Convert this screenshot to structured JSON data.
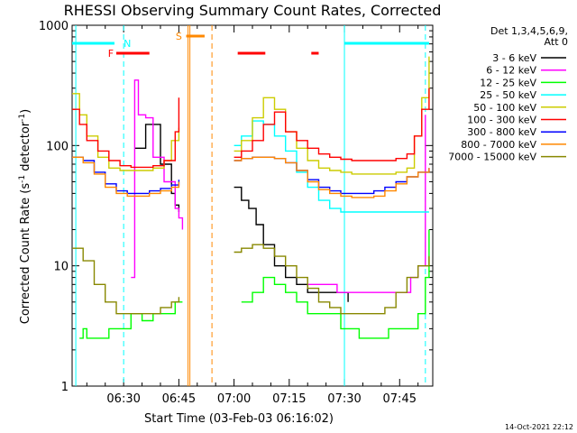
{
  "chart_data": {
    "type": "line",
    "title": "RHESSI Observing Summary Count Rates, Corrected",
    "xlabel": "Start Time (03-Feb-03 06:16:02)",
    "ylabel": "Corrected Count Rate (s",
    "ylabel_sup1": "-1",
    "ylabel_mid": " detector",
    "ylabel_sup2": "-1",
    "ylabel_end": ")",
    "y_scale": "log",
    "ylim": [
      1,
      1000
    ],
    "y_ticks": [
      {
        "value": 1,
        "label": "1"
      },
      {
        "value": 10,
        "label": "10"
      },
      {
        "value": 100,
        "label": "100"
      },
      {
        "value": 1000,
        "label": "1000"
      }
    ],
    "x_unit": "minutes",
    "xlim": [
      376,
      474
    ],
    "x_ticks": [
      {
        "value": 390,
        "label": "06:30"
      },
      {
        "value": 405,
        "label": "06:45"
      },
      {
        "value": 420,
        "label": "07:00"
      },
      {
        "value": 435,
        "label": "07:15"
      },
      {
        "value": 450,
        "label": "07:30"
      },
      {
        "value": 465,
        "label": "07:45"
      }
    ],
    "legend": {
      "header1": "Det 1,3,4,5,6,9,",
      "header2": "Att 0",
      "placement": "right"
    },
    "series": [
      {
        "name": "3 - 6 keV",
        "color": "#000000",
        "x": [
          376,
          383,
          387,
          390,
          393,
          396,
          400,
          403,
          404,
          405,
          406,
          407,
          408,
          409,
          411,
          414,
          418,
          419,
          420,
          422,
          424,
          426,
          428,
          431,
          434,
          437,
          440,
          443,
          446,
          448,
          451
        ],
        "y": [
          null,
          null,
          null,
          null,
          95,
          150,
          70,
          40,
          32,
          28,
          null,
          null,
          null,
          null,
          null,
          null,
          null,
          null,
          45,
          35,
          30,
          22,
          15,
          10,
          8,
          7,
          6,
          6,
          6,
          6,
          5
        ]
      },
      {
        "name": "6 - 12 keV",
        "color": "#ff00ff",
        "x": [
          376,
          380,
          384,
          386,
          387,
          388,
          389,
          390,
          391,
          392,
          393,
          394,
          396,
          398,
          401,
          404,
          405,
          406,
          407,
          408,
          409,
          418,
          419,
          420,
          422,
          424,
          426,
          428,
          431,
          434,
          437,
          440,
          443,
          446,
          448,
          451,
          454,
          456,
          458,
          460,
          462,
          464,
          466,
          468,
          470,
          472
        ],
        "y": [
          null,
          null,
          null,
          null,
          null,
          null,
          null,
          null,
          null,
          8,
          350,
          180,
          170,
          80,
          50,
          30,
          25,
          20,
          null,
          null,
          null,
          null,
          null,
          null,
          null,
          null,
          null,
          null,
          null,
          null,
          null,
          7,
          7,
          7,
          6,
          6,
          6,
          6,
          6,
          6,
          6,
          6,
          6,
          8,
          10,
          180
        ]
      },
      {
        "name": "12 - 25 keV",
        "color": "#00ff00",
        "x": [
          376,
          377,
          378,
          379,
          380,
          383,
          386,
          389,
          392,
          395,
          398,
          401,
          404,
          405,
          406,
          407,
          408,
          409,
          418,
          419,
          420,
          422,
          425,
          428,
          431,
          434,
          437,
          440,
          443,
          446,
          449,
          452,
          454,
          456,
          458,
          460,
          462,
          464,
          466,
          468,
          470,
          472,
          473
        ],
        "y": [
          null,
          null,
          2.5,
          3,
          2.5,
          2.5,
          3,
          3,
          4,
          3.5,
          4,
          4,
          5,
          5,
          5,
          null,
          null,
          null,
          null,
          null,
          null,
          5,
          6,
          8,
          7,
          6,
          5,
          4,
          4,
          4,
          3,
          3,
          2.5,
          2.5,
          2.5,
          2.5,
          3,
          3,
          3,
          3,
          4,
          8,
          20
        ]
      },
      {
        "name": "25 - 50 keV",
        "color": "#00ffff",
        "x": [
          376,
          380,
          384,
          387,
          390,
          393,
          396,
          399,
          402,
          404,
          405,
          406,
          407,
          408,
          409,
          418,
          419,
          420,
          422,
          425,
          428,
          431,
          434,
          437,
          440,
          443,
          446,
          449,
          452,
          455,
          458,
          461,
          464,
          467,
          469,
          471,
          473
        ],
        "y": [
          null,
          null,
          null,
          null,
          null,
          null,
          null,
          null,
          null,
          null,
          null,
          null,
          null,
          null,
          null,
          null,
          null,
          100,
          120,
          160,
          150,
          120,
          90,
          60,
          45,
          35,
          30,
          28,
          28,
          28,
          28,
          28,
          28,
          28,
          28,
          28,
          28
        ]
      },
      {
        "name": "50 - 100 keV",
        "color": "#cccc00",
        "x": [
          376,
          378,
          380,
          383,
          386,
          389,
          392,
          395,
          398,
          401,
          403,
          405,
          406,
          407,
          408,
          409,
          418,
          419,
          420,
          422,
          425,
          428,
          431,
          434,
          437,
          440,
          443,
          446,
          449,
          452,
          455,
          458,
          461,
          464,
          467,
          469,
          471,
          473
        ],
        "y": [
          270,
          180,
          120,
          80,
          65,
          62,
          62,
          62,
          65,
          75,
          110,
          140,
          null,
          null,
          null,
          null,
          null,
          null,
          90,
          110,
          170,
          250,
          200,
          130,
          95,
          75,
          65,
          62,
          60,
          58,
          58,
          58,
          58,
          60,
          65,
          120,
          250,
          550
        ]
      },
      {
        "name": "100 - 300 keV",
        "color": "#ff0000",
        "x": [
          376,
          378,
          380,
          383,
          386,
          389,
          392,
          395,
          398,
          401,
          404,
          405,
          406,
          407,
          408,
          409,
          418,
          419,
          420,
          422,
          425,
          428,
          431,
          434,
          437,
          440,
          443,
          446,
          449,
          452,
          455,
          458,
          461,
          464,
          467,
          469,
          471,
          473
        ],
        "y": [
          200,
          150,
          110,
          90,
          75,
          68,
          66,
          66,
          68,
          75,
          130,
          250,
          null,
          null,
          null,
          null,
          null,
          null,
          80,
          90,
          110,
          150,
          190,
          130,
          110,
          95,
          85,
          80,
          77,
          75,
          75,
          75,
          75,
          78,
          85,
          120,
          200,
          300
        ]
      },
      {
        "name": "300 - 800 keV",
        "color": "#0000ff",
        "x": [
          376,
          379,
          382,
          385,
          388,
          391,
          394,
          397,
          400,
          403,
          405,
          406,
          407,
          408,
          409,
          418,
          419,
          420,
          422,
          425,
          428,
          431,
          434,
          437,
          440,
          443,
          446,
          449,
          452,
          455,
          458,
          461,
          464,
          467,
          470,
          473
        ],
        "y": [
          80,
          75,
          60,
          48,
          42,
          40,
          40,
          42,
          44,
          47,
          52,
          null,
          null,
          null,
          null,
          null,
          null,
          75,
          78,
          80,
          80,
          78,
          72,
          62,
          52,
          45,
          42,
          40,
          40,
          40,
          42,
          45,
          50,
          55,
          60,
          65
        ]
      },
      {
        "name": "800 - 7000 keV",
        "color": "#ff8800",
        "x": [
          376,
          379,
          382,
          385,
          388,
          391,
          394,
          397,
          400,
          403,
          405,
          406,
          407,
          408,
          409,
          418,
          419,
          420,
          422,
          425,
          428,
          431,
          434,
          437,
          440,
          443,
          446,
          449,
          452,
          455,
          458,
          461,
          464,
          467,
          470,
          473
        ],
        "y": [
          80,
          72,
          58,
          45,
          40,
          38,
          38,
          40,
          42,
          45,
          50,
          null,
          null,
          null,
          null,
          null,
          null,
          75,
          78,
          80,
          80,
          78,
          72,
          62,
          50,
          43,
          40,
          38,
          37,
          37,
          38,
          42,
          48,
          55,
          60,
          65
        ]
      },
      {
        "name": "7000 - 15000 keV",
        "color": "#888800",
        "x": [
          376,
          379,
          382,
          385,
          388,
          391,
          394,
          397,
          400,
          403,
          405,
          406,
          407,
          408,
          409,
          418,
          419,
          420,
          422,
          425,
          428,
          431,
          434,
          437,
          440,
          443,
          446,
          449,
          452,
          455,
          458,
          461,
          464,
          467,
          470,
          473
        ],
        "y": [
          14,
          11,
          7,
          5,
          4,
          4,
          4,
          4,
          4.5,
          5,
          5.5,
          null,
          null,
          null,
          null,
          null,
          null,
          13,
          14,
          15,
          14,
          12,
          10,
          8,
          6.5,
          5,
          4.5,
          4,
          4,
          4,
          4,
          4.5,
          6,
          8,
          10,
          12
        ]
      }
    ],
    "flags": [
      {
        "label": "F",
        "color": "#ff0000",
        "label_x": 386.5,
        "segments": [
          [
            388,
            397
          ]
        ],
        "row": 1
      },
      {
        "label": "N",
        "color": "#00ffff",
        "label_x": 391,
        "segments": [
          [
            376,
            387.5
          ],
          [
            450,
            473
          ]
        ],
        "row": 0
      },
      {
        "label": "S",
        "color": "#ff8800",
        "label_x": 405,
        "segments": [
          [
            407,
            412
          ]
        ],
        "row": -1
      },
      {
        "label": "",
        "color": "#ff0000",
        "label_x": null,
        "segments": [
          [
            421,
            428.5
          ],
          [
            441,
            443
          ]
        ],
        "row": 1
      }
    ],
    "vlines": [
      {
        "x": 377,
        "color": "#00ffff",
        "dash": false
      },
      {
        "x": 390,
        "color": "#00ffff",
        "dash": true
      },
      {
        "x": 407.5,
        "color": "#ff8800",
        "dash": false
      },
      {
        "x": 408,
        "color": "#ff8800",
        "dash": false
      },
      {
        "x": 414,
        "color": "#ff8800",
        "dash": true
      },
      {
        "x": 450,
        "color": "#00ffff",
        "dash": false
      },
      {
        "x": 472,
        "color": "#00ffff",
        "dash": true
      }
    ]
  },
  "footer": {
    "timestamp": "14-Oct-2021 22:12"
  }
}
